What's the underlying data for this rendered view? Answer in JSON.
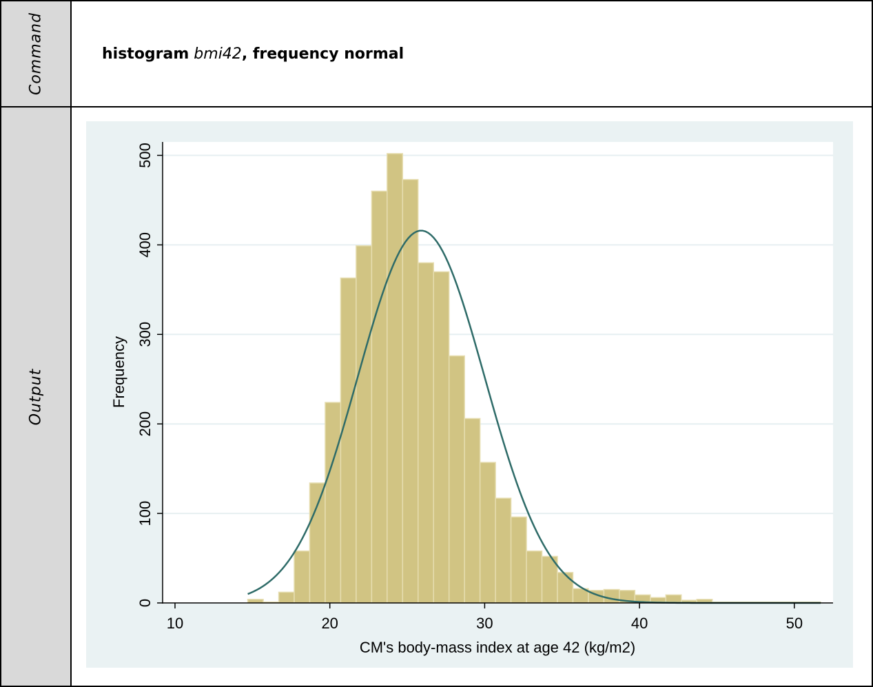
{
  "sidebar": {
    "command_label": "Command",
    "output_label": "Output"
  },
  "command": {
    "keyword": "histogram",
    "variable": "bmi42",
    "options": ", frequency normal"
  },
  "colors": {
    "bar_fill": "#d1c483",
    "bar_edge": "#e6ddb0",
    "curve": "#2e6b68",
    "plot_background": "#ffffff",
    "graph_background": "#eaf2f3",
    "sidebar": "#d9d9d9"
  },
  "chart_data": {
    "type": "bar",
    "title": "",
    "xlabel": "CM's body-mass index at age 42 (kg/m2)",
    "ylabel": "Frequency",
    "xlim": [
      9.2,
      52.5
    ],
    "ylim": [
      0,
      515
    ],
    "xticks": [
      10,
      20,
      30,
      40,
      50
    ],
    "yticks": [
      0,
      100,
      200,
      300,
      400,
      500
    ],
    "grid": true,
    "bin_width": 1.0,
    "bin_starts": [
      14.7,
      15.7,
      16.7,
      17.7,
      18.7,
      19.7,
      20.7,
      21.7,
      22.7,
      23.7,
      24.7,
      25.7,
      26.7,
      27.7,
      28.7,
      29.7,
      30.7,
      31.7,
      32.7,
      33.7,
      34.7,
      35.7,
      36.7,
      37.7,
      38.7,
      39.7,
      40.7,
      41.7,
      42.7,
      43.7,
      44.7,
      45.7,
      46.7,
      47.7,
      48.7,
      49.7,
      50.7
    ],
    "values": [
      4,
      1,
      12,
      58,
      134,
      224,
      363,
      399,
      460,
      502,
      473,
      380,
      370,
      276,
      206,
      157,
      117,
      96,
      58,
      52,
      34,
      16,
      14,
      15,
      14,
      9,
      6,
      9,
      3,
      4,
      1,
      1,
      1,
      1,
      1,
      1,
      1
    ],
    "normal_curve": {
      "name": "",
      "mean": 25.9,
      "sd": 4.1,
      "peak": 416,
      "x_range": [
        14.7,
        51.7
      ]
    }
  }
}
